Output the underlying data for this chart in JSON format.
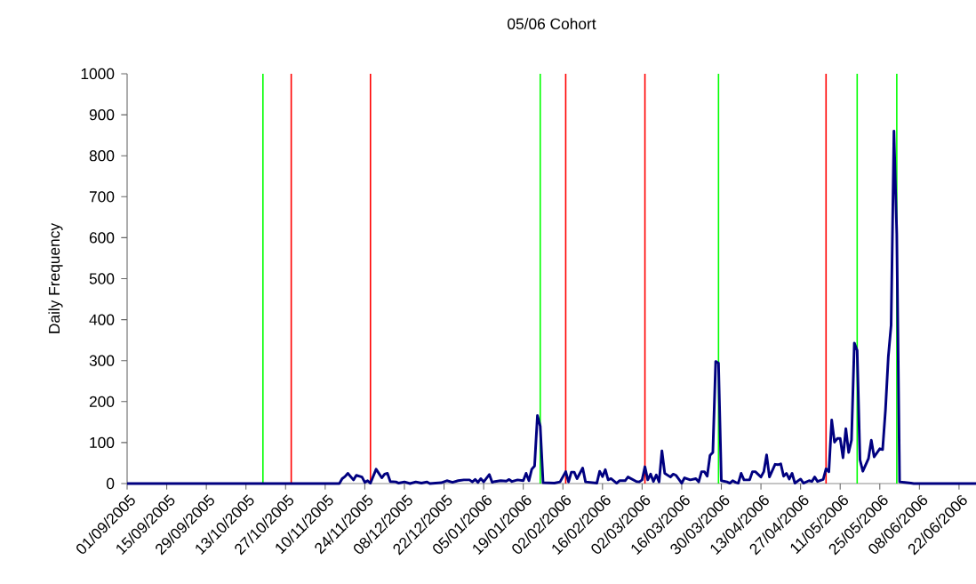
{
  "chart_data": {
    "type": "line",
    "title": "05/06 Cohort",
    "ylabel": "Daily Frequency",
    "xlim": [
      "2005-09-01",
      "2006-06-28"
    ],
    "ylim": [
      0,
      1000
    ],
    "yticks": [
      0,
      100,
      200,
      300,
      400,
      500,
      600,
      700,
      800,
      900,
      1000
    ],
    "xticks": [
      {
        "value": "2005-09-01",
        "label": "01/09/2005"
      },
      {
        "value": "2005-09-15",
        "label": "15/09/2005"
      },
      {
        "value": "2005-09-29",
        "label": "29/09/2005"
      },
      {
        "value": "2005-10-13",
        "label": "13/10/2005"
      },
      {
        "value": "2005-10-27",
        "label": "27/10/2005"
      },
      {
        "value": "2005-11-10",
        "label": "10/11/2005"
      },
      {
        "value": "2005-11-24",
        "label": "24/11/2005"
      },
      {
        "value": "2005-12-08",
        "label": "08/12/2005"
      },
      {
        "value": "2005-12-22",
        "label": "22/12/2005"
      },
      {
        "value": "2006-01-05",
        "label": "05/01/2006"
      },
      {
        "value": "2006-01-19",
        "label": "19/01/2006"
      },
      {
        "value": "2006-02-02",
        "label": "02/02/2006"
      },
      {
        "value": "2006-02-16",
        "label": "16/02/2006"
      },
      {
        "value": "2006-03-02",
        "label": "02/03/2006"
      },
      {
        "value": "2006-03-16",
        "label": "16/03/2006"
      },
      {
        "value": "2006-03-30",
        "label": "30/03/2006"
      },
      {
        "value": "2006-04-13",
        "label": "13/04/2006"
      },
      {
        "value": "2006-04-27",
        "label": "27/04/2006"
      },
      {
        "value": "2006-05-11",
        "label": "11/05/2006"
      },
      {
        "value": "2006-05-25",
        "label": "25/05/2006"
      },
      {
        "value": "2006-06-08",
        "label": "08/06/2006"
      },
      {
        "value": "2006-06-22",
        "label": "22/06/2006"
      }
    ],
    "ref_lines": [
      {
        "axis": "x",
        "value": "2005-10-19",
        "color": "#00ff00"
      },
      {
        "axis": "x",
        "value": "2005-10-29",
        "color": "#ff0000"
      },
      {
        "axis": "x",
        "value": "2005-11-26",
        "color": "#ff0000"
      },
      {
        "axis": "x",
        "value": "2006-01-25",
        "color": "#00ff00"
      },
      {
        "axis": "x",
        "value": "2006-02-03",
        "color": "#ff0000"
      },
      {
        "axis": "x",
        "value": "2006-03-03",
        "color": "#ff0000"
      },
      {
        "axis": "x",
        "value": "2006-03-29",
        "color": "#00ff00"
      },
      {
        "axis": "x",
        "value": "2006-05-06",
        "color": "#ff0000"
      },
      {
        "axis": "x",
        "value": "2006-05-17",
        "color": "#00ff00"
      },
      {
        "axis": "x",
        "value": "2006-05-31",
        "color": "#00ff00"
      }
    ],
    "series": [
      {
        "color": "#000080",
        "x": [
          "2005-09-01",
          "2005-11-15",
          "2005-11-16",
          "2005-11-17",
          "2005-11-18",
          "2005-11-20",
          "2005-11-21",
          "2005-11-23",
          "2005-11-24",
          "2005-11-25",
          "2005-11-26",
          "2005-11-28",
          "2005-11-30",
          "2005-12-01",
          "2005-12-02",
          "2005-12-03",
          "2005-12-05",
          "2005-12-06",
          "2005-12-08",
          "2005-12-10",
          "2005-12-12",
          "2005-12-14",
          "2005-12-16",
          "2005-12-17",
          "2005-12-21",
          "2005-12-23",
          "2005-12-25",
          "2005-12-27",
          "2005-12-29",
          "2005-12-31",
          "2006-01-01",
          "2006-01-02",
          "2006-01-03",
          "2006-01-04",
          "2006-01-05",
          "2006-01-07",
          "2006-01-08",
          "2006-01-09",
          "2006-01-11",
          "2006-01-13",
          "2006-01-14",
          "2006-01-15",
          "2006-01-17",
          "2006-01-19",
          "2006-01-20",
          "2006-01-21",
          "2006-01-22",
          "2006-01-23",
          "2006-01-24",
          "2006-01-25",
          "2006-01-26",
          "2006-01-30",
          "2006-02-01",
          "2006-02-03",
          "2006-02-04",
          "2006-02-05",
          "2006-02-06",
          "2006-02-07",
          "2006-02-09",
          "2006-02-10",
          "2006-02-14",
          "2006-02-15",
          "2006-02-16",
          "2006-02-17",
          "2006-02-18",
          "2006-02-19",
          "2006-02-21",
          "2006-02-22",
          "2006-02-24",
          "2006-02-25",
          "2006-02-28",
          "2006-03-01",
          "2006-03-02",
          "2006-03-03",
          "2006-03-04",
          "2006-03-05",
          "2006-03-06",
          "2006-03-07",
          "2006-03-08",
          "2006-03-09",
          "2006-03-10",
          "2006-03-12",
          "2006-03-13",
          "2006-03-14",
          "2006-03-16",
          "2006-03-17",
          "2006-03-19",
          "2006-03-21",
          "2006-03-22",
          "2006-03-23",
          "2006-03-24",
          "2006-03-25",
          "2006-03-26",
          "2006-03-27",
          "2006-03-28",
          "2006-03-29",
          "2006-03-30",
          "2006-04-01",
          "2006-04-02",
          "2006-04-03",
          "2006-04-04",
          "2006-04-05",
          "2006-04-06",
          "2006-04-07",
          "2006-04-09",
          "2006-04-10",
          "2006-04-11",
          "2006-04-13",
          "2006-04-14",
          "2006-04-15",
          "2006-04-16",
          "2006-04-18",
          "2006-04-19",
          "2006-04-20",
          "2006-04-21",
          "2006-04-22",
          "2006-04-23",
          "2006-04-24",
          "2006-04-25",
          "2006-04-27",
          "2006-04-28",
          "2006-04-30",
          "2006-05-01",
          "2006-05-02",
          "2006-05-03",
          "2006-05-05",
          "2006-05-06",
          "2006-05-07",
          "2006-05-08",
          "2006-05-09",
          "2006-05-10",
          "2006-05-11",
          "2006-05-12",
          "2006-05-13",
          "2006-05-14",
          "2006-05-15",
          "2006-05-16",
          "2006-05-17",
          "2006-05-18",
          "2006-05-19",
          "2006-05-21",
          "2006-05-22",
          "2006-05-23",
          "2006-05-25",
          "2006-05-26",
          "2006-05-27",
          "2006-05-28",
          "2006-05-29",
          "2006-05-30",
          "2006-05-31",
          "2006-06-01",
          "2006-06-05",
          "2006-06-06",
          "2006-06-28"
        ],
        "values": [
          0,
          0,
          12,
          17,
          25,
          9,
          20,
          16,
          3,
          7,
          1,
          35,
          14,
          23,
          25,
          5,
          4,
          1,
          4,
          0,
          4,
          1,
          4,
          0,
          2,
          7,
          3,
          7,
          9,
          9,
          4,
          10,
          3,
          12,
          4,
          22,
          3,
          5,
          7,
          6,
          10,
          5,
          9,
          7,
          25,
          7,
          35,
          43,
          166,
          140,
          2,
          1,
          4,
          29,
          4,
          28,
          28,
          12,
          38,
          4,
          1,
          30,
          17,
          34,
          9,
          12,
          1,
          7,
          7,
          16,
          5,
          4,
          9,
          41,
          9,
          23,
          5,
          21,
          4,
          80,
          25,
          16,
          23,
          20,
          1,
          14,
          9,
          12,
          4,
          29,
          29,
          18,
          69,
          76,
          298,
          294,
          7,
          4,
          1,
          7,
          3,
          1,
          25,
          9,
          9,
          29,
          29,
          16,
          29,
          70,
          16,
          47,
          46,
          48,
          18,
          25,
          11,
          25,
          1,
          11,
          1,
          7,
          5,
          16,
          5,
          10,
          36,
          29,
          155,
          101,
          110,
          110,
          63,
          134,
          76,
          106,
          343,
          325,
          58,
          30,
          61,
          106,
          65,
          85,
          83,
          179,
          309,
          387,
          860,
          609,
          4,
          1,
          0,
          0
        ]
      }
    ]
  }
}
